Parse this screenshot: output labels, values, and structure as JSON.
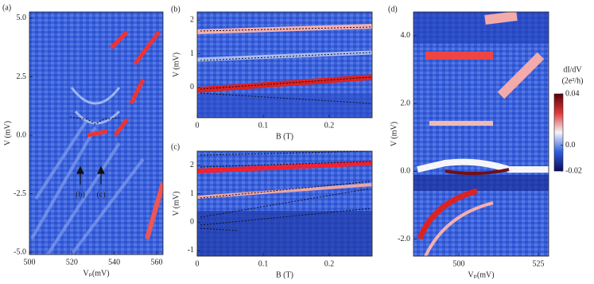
{
  "chart_data": [
    {
      "type": "heatmap",
      "label": "(a)",
      "xlabel": "Vₚ(mV)",
      "ylabel": "V (mV)",
      "xlim": [
        500,
        563
      ],
      "ylim": [
        -5.1,
        5.27
      ],
      "xticks": [
        500,
        520,
        540,
        560
      ],
      "yticks": [
        {
          "value": 5,
          "label": "5.0"
        },
        2.5,
        {
          "value": 0,
          "label": "0.0"
        },
        -2.5,
        {
          "value": -5,
          "label": "-5.0"
        }
      ],
      "annotations": [
        "(b)",
        "(c)"
      ]
    },
    {
      "type": "heatmap",
      "label": "(b)",
      "xlabel": "B (T)",
      "ylabel": "V (mV)",
      "xlim": [
        0,
        0.265
      ],
      "ylim": [
        -0.9,
        2.24
      ],
      "xticks": [
        0,
        0.1,
        0.2
      ],
      "yticks": [
        2,
        1,
        0
      ]
    },
    {
      "type": "heatmap",
      "label": "(c)",
      "xlabel": "B (T)",
      "ylabel": "V (mV)",
      "xlim": [
        0,
        0.265
      ],
      "ylim": [
        -1.2,
        2.5
      ],
      "xticks": [
        0,
        0.1,
        0.2
      ],
      "yticks": [
        2,
        1,
        0,
        -1
      ]
    },
    {
      "type": "heatmap",
      "label": "(d)",
      "xlabel": "Vₚ(mV)",
      "ylabel": "V (mV)",
      "xlim": [
        485.75,
        528.25
      ],
      "ylim": [
        -2.5,
        4.7
      ],
      "xticks": [
        500,
        525
      ],
      "yticks": [
        {
          "value": 4,
          "label": "4.0"
        },
        {
          "value": 2,
          "label": "2.0"
        },
        {
          "value": 0,
          "label": "0.0"
        },
        {
          "value": -2,
          "label": "-2.0"
        }
      ],
      "colorbar": {
        "label": [
          "dI/dV",
          "(2e²/h)"
        ],
        "clim": [
          -0.02,
          0.04
        ],
        "colors": [
          "#0b0b5e",
          "#2f5fe0",
          "#f4f4f8",
          "#e03a3a",
          "#5a0008"
        ],
        "ticks": [
          0.04,
          {
            "value": 0,
            "label": "0.0"
          },
          -0.02
        ]
      }
    }
  ]
}
